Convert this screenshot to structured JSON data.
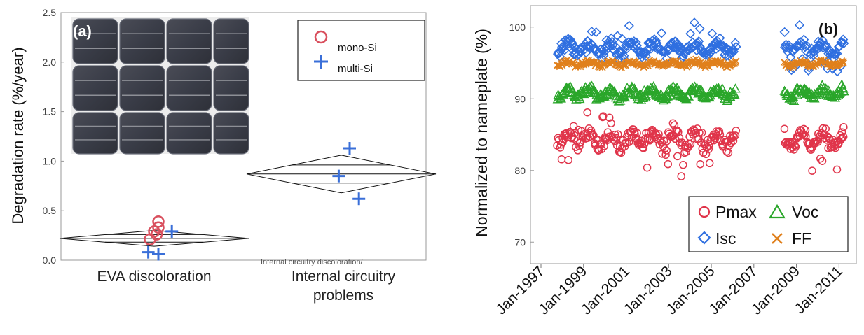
{
  "chart_data": [
    {
      "type": "scatter",
      "panel_label": "(a)",
      "ylabel": "Degradation rate (%/year)",
      "ylim": [
        0,
        2.5
      ],
      "yticks": [
        "0.0",
        "0.5",
        "1.0",
        "1.5",
        "2.0",
        "2.5"
      ],
      "categories": [
        "EVA discoloration",
        "Internal circuitry problems"
      ],
      "category_lines": [
        [
          "EVA discoloration"
        ],
        [
          "Internal circuitry",
          "problems"
        ]
      ],
      "series": [
        {
          "name": "mono-Si",
          "marker": "circle",
          "color": "#d9505e",
          "points": [
            {
              "category": 0,
              "offset": -0.05,
              "y": 0.21
            },
            {
              "category": 0,
              "offset": 0.0,
              "y": 0.29
            },
            {
              "category": 0,
              "offset": 0.03,
              "y": 0.26
            },
            {
              "category": 0,
              "offset": 0.05,
              "y": 0.33
            },
            {
              "category": 0,
              "offset": 0.05,
              "y": 0.39
            }
          ]
        },
        {
          "name": "multi-Si",
          "marker": "plus",
          "color": "#3a6fd8",
          "points": [
            {
              "category": 0,
              "offset": -0.07,
              "y": 0.08
            },
            {
              "category": 0,
              "offset": 0.05,
              "y": 0.06
            },
            {
              "category": 0,
              "offset": 0.21,
              "y": 0.29
            },
            {
              "category": 1,
              "offset": 0.1,
              "y": 1.13
            },
            {
              "category": 1,
              "offset": -0.03,
              "y": 0.85
            },
            {
              "category": 1,
              "offset": 0.21,
              "y": 0.62
            }
          ]
        }
      ],
      "means_diamonds": [
        {
          "category": 0,
          "mean": 0.22,
          "upper": 0.3,
          "lower": 0.14
        },
        {
          "category": 1,
          "mean": 0.87,
          "upper": 1.06,
          "lower": 0.68
        }
      ],
      "faint_text": "Internal circuitry discoloration/",
      "legend_position": "top-right",
      "grid": false
    },
    {
      "type": "scatter",
      "panel_label": "(b)",
      "ylabel": "Normalized to nameplate  (%)",
      "ylim": [
        67,
        103
      ],
      "yticks": [
        70,
        80,
        90,
        100
      ],
      "xlabels": [
        "Jan-1997",
        "Jan-1999",
        "Jan-2001",
        "Jan-2003",
        "Jan-2005",
        "Jan-2007",
        "Jan-2009",
        "Jan-2011"
      ],
      "xrange": [
        "Jan-1997",
        "Jun-2011"
      ],
      "data_spans": [
        [
          "Oct-1997",
          "Mar-2006"
        ],
        [
          "Jun-2008",
          "Apr-2011"
        ]
      ],
      "series": [
        {
          "name": "Pmax",
          "marker": "circle",
          "color": "#e0344a",
          "mean": 84.3,
          "spread": 1.7
        },
        {
          "name": "Voc",
          "marker": "triangle",
          "color": "#2aa62a",
          "mean": 90.8,
          "spread": 0.9
        },
        {
          "name": "Isc",
          "marker": "diamond",
          "color": "#2f6fe0",
          "mean": 97.0,
          "spread": 1.2
        },
        {
          "name": "FF",
          "marker": "x",
          "color": "#e0801c",
          "mean": 94.9,
          "spread": 0.45
        }
      ],
      "legend_position": "bottom-right",
      "grid": false
    }
  ]
}
